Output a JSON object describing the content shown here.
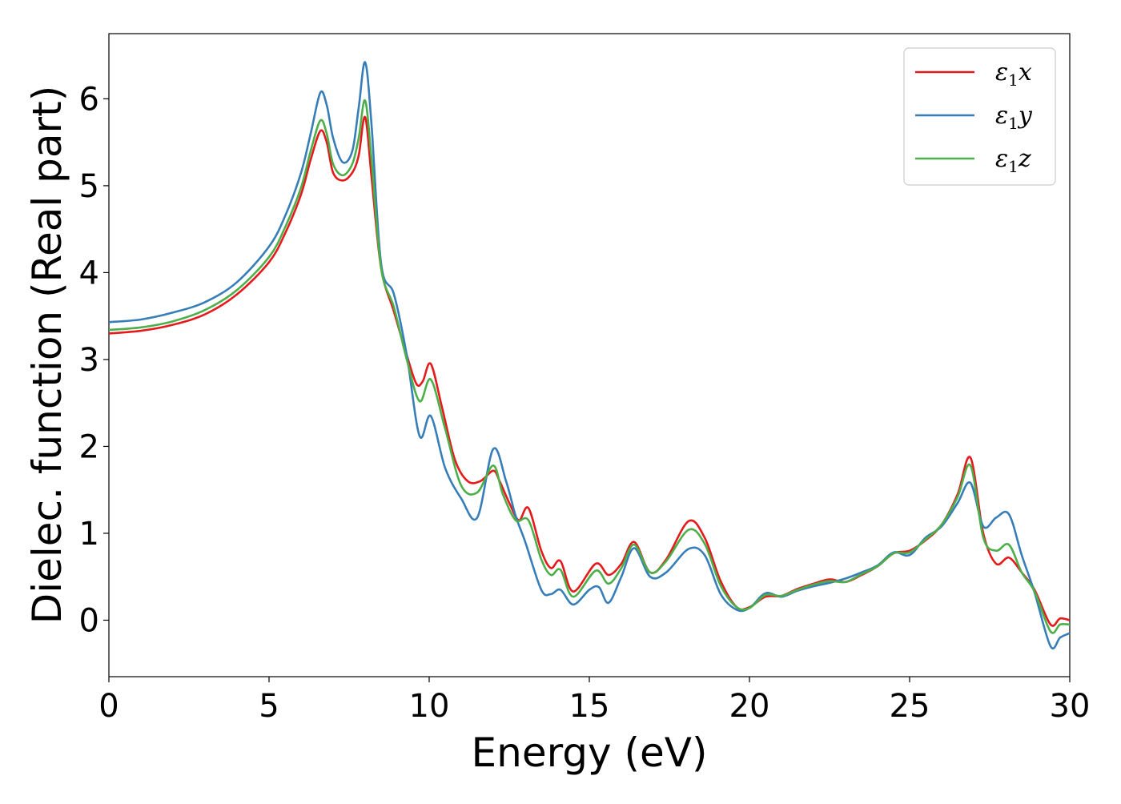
{
  "chart_data": {
    "type": "line",
    "title": "",
    "xlabel": "Energy (eV)",
    "ylabel": "Dielec. function (Real part)",
    "xlim": [
      0,
      30
    ],
    "ylim": [
      -0.65,
      6.75
    ],
    "xticks": [
      0,
      5,
      10,
      15,
      20,
      25,
      30
    ],
    "yticks": [
      0,
      1,
      2,
      3,
      4,
      5,
      6
    ],
    "grid": false,
    "legend_position": "top-right",
    "series": [
      {
        "name": "ε1x",
        "legend": {
          "symbol": "ε",
          "sub": "1",
          "axis": "x"
        },
        "color": "#e41a1c",
        "points": [
          [
            0,
            3.3
          ],
          [
            1,
            3.33
          ],
          [
            2,
            3.4
          ],
          [
            3,
            3.52
          ],
          [
            4,
            3.75
          ],
          [
            5,
            4.12
          ],
          [
            5.5,
            4.45
          ],
          [
            6,
            4.9
          ],
          [
            6.3,
            5.3
          ],
          [
            6.6,
            5.63
          ],
          [
            6.8,
            5.5
          ],
          [
            7.0,
            5.15
          ],
          [
            7.3,
            5.06
          ],
          [
            7.6,
            5.15
          ],
          [
            7.8,
            5.35
          ],
          [
            8.0,
            5.79
          ],
          [
            8.2,
            5.1
          ],
          [
            8.5,
            4.05
          ],
          [
            8.9,
            3.55
          ],
          [
            9.3,
            3.05
          ],
          [
            9.6,
            2.72
          ],
          [
            9.8,
            2.75
          ],
          [
            10.05,
            2.95
          ],
          [
            10.4,
            2.45
          ],
          [
            10.8,
            1.85
          ],
          [
            11.2,
            1.6
          ],
          [
            11.6,
            1.6
          ],
          [
            12.0,
            1.72
          ],
          [
            12.2,
            1.6
          ],
          [
            12.5,
            1.35
          ],
          [
            12.8,
            1.15
          ],
          [
            13.1,
            1.29
          ],
          [
            13.5,
            0.8
          ],
          [
            13.8,
            0.6
          ],
          [
            14.1,
            0.68
          ],
          [
            14.5,
            0.33
          ],
          [
            15.2,
            0.65
          ],
          [
            15.6,
            0.52
          ],
          [
            16.0,
            0.65
          ],
          [
            16.4,
            0.9
          ],
          [
            16.9,
            0.55
          ],
          [
            17.4,
            0.7
          ],
          [
            18.1,
            1.14
          ],
          [
            18.6,
            0.95
          ],
          [
            19.1,
            0.45
          ],
          [
            19.6,
            0.15
          ],
          [
            20.0,
            0.15
          ],
          [
            20.5,
            0.27
          ],
          [
            21.0,
            0.28
          ],
          [
            21.5,
            0.36
          ],
          [
            22.0,
            0.42
          ],
          [
            22.5,
            0.47
          ],
          [
            23.0,
            0.44
          ],
          [
            23.5,
            0.52
          ],
          [
            24.0,
            0.62
          ],
          [
            24.5,
            0.77
          ],
          [
            25.0,
            0.8
          ],
          [
            25.5,
            0.92
          ],
          [
            26.0,
            1.1
          ],
          [
            26.5,
            1.45
          ],
          [
            26.9,
            1.87
          ],
          [
            27.3,
            1.0
          ],
          [
            27.7,
            0.65
          ],
          [
            28.1,
            0.72
          ],
          [
            28.5,
            0.55
          ],
          [
            28.9,
            0.35
          ],
          [
            29.4,
            -0.05
          ],
          [
            29.7,
            0.02
          ],
          [
            30.0,
            0.0
          ]
        ]
      },
      {
        "name": "ε1y",
        "legend": {
          "symbol": "ε",
          "sub": "1",
          "axis": "y"
        },
        "color": "#377eb8",
        "points": [
          [
            0,
            3.43
          ],
          [
            1,
            3.46
          ],
          [
            2,
            3.54
          ],
          [
            3,
            3.66
          ],
          [
            4,
            3.89
          ],
          [
            5,
            4.3
          ],
          [
            5.5,
            4.65
          ],
          [
            6,
            5.15
          ],
          [
            6.3,
            5.6
          ],
          [
            6.6,
            6.07
          ],
          [
            6.8,
            5.93
          ],
          [
            7.0,
            5.55
          ],
          [
            7.3,
            5.27
          ],
          [
            7.6,
            5.4
          ],
          [
            7.8,
            5.9
          ],
          [
            8.0,
            6.42
          ],
          [
            8.2,
            5.7
          ],
          [
            8.5,
            4.1
          ],
          [
            8.9,
            3.75
          ],
          [
            9.3,
            3.05
          ],
          [
            9.7,
            2.12
          ],
          [
            10.05,
            2.35
          ],
          [
            10.5,
            1.75
          ],
          [
            11.0,
            1.4
          ],
          [
            11.5,
            1.18
          ],
          [
            12.0,
            1.97
          ],
          [
            12.4,
            1.6
          ],
          [
            12.7,
            1.2
          ],
          [
            13.0,
            0.9
          ],
          [
            13.5,
            0.35
          ],
          [
            13.8,
            0.3
          ],
          [
            14.1,
            0.35
          ],
          [
            14.5,
            0.18
          ],
          [
            15.0,
            0.35
          ],
          [
            15.3,
            0.38
          ],
          [
            15.6,
            0.2
          ],
          [
            16.0,
            0.5
          ],
          [
            16.4,
            0.83
          ],
          [
            16.9,
            0.5
          ],
          [
            17.4,
            0.55
          ],
          [
            18.1,
            0.82
          ],
          [
            18.6,
            0.75
          ],
          [
            19.1,
            0.3
          ],
          [
            19.6,
            0.12
          ],
          [
            20.0,
            0.14
          ],
          [
            20.5,
            0.31
          ],
          [
            21.0,
            0.27
          ],
          [
            21.5,
            0.34
          ],
          [
            22.0,
            0.39
          ],
          [
            22.5,
            0.43
          ],
          [
            23.0,
            0.48
          ],
          [
            23.5,
            0.55
          ],
          [
            24.0,
            0.63
          ],
          [
            24.5,
            0.78
          ],
          [
            25.0,
            0.75
          ],
          [
            25.5,
            0.95
          ],
          [
            26.0,
            1.08
          ],
          [
            26.5,
            1.35
          ],
          [
            26.9,
            1.58
          ],
          [
            27.3,
            1.08
          ],
          [
            27.7,
            1.18
          ],
          [
            28.1,
            1.22
          ],
          [
            28.5,
            0.75
          ],
          [
            28.9,
            0.32
          ],
          [
            29.4,
            -0.3
          ],
          [
            29.7,
            -0.2
          ],
          [
            30.0,
            -0.15
          ]
        ]
      },
      {
        "name": "ε1z",
        "legend": {
          "symbol": "ε",
          "sub": "1",
          "axis": "z"
        },
        "color": "#4daf4a",
        "points": [
          [
            0,
            3.34
          ],
          [
            1,
            3.37
          ],
          [
            2,
            3.44
          ],
          [
            3,
            3.57
          ],
          [
            4,
            3.8
          ],
          [
            5,
            4.18
          ],
          [
            5.5,
            4.52
          ],
          [
            6,
            4.98
          ],
          [
            6.3,
            5.4
          ],
          [
            6.6,
            5.75
          ],
          [
            6.8,
            5.6
          ],
          [
            7.0,
            5.25
          ],
          [
            7.3,
            5.12
          ],
          [
            7.6,
            5.25
          ],
          [
            7.8,
            5.55
          ],
          [
            8.0,
            5.98
          ],
          [
            8.2,
            5.3
          ],
          [
            8.5,
            4.05
          ],
          [
            8.9,
            3.6
          ],
          [
            9.3,
            3.0
          ],
          [
            9.7,
            2.52
          ],
          [
            10.05,
            2.77
          ],
          [
            10.5,
            2.2
          ],
          [
            11.0,
            1.55
          ],
          [
            11.5,
            1.47
          ],
          [
            12.0,
            1.78
          ],
          [
            12.3,
            1.45
          ],
          [
            12.7,
            1.15
          ],
          [
            13.1,
            1.15
          ],
          [
            13.5,
            0.7
          ],
          [
            13.8,
            0.52
          ],
          [
            14.1,
            0.58
          ],
          [
            14.5,
            0.27
          ],
          [
            15.2,
            0.57
          ],
          [
            15.6,
            0.42
          ],
          [
            16.0,
            0.6
          ],
          [
            16.4,
            0.87
          ],
          [
            16.9,
            0.55
          ],
          [
            17.4,
            0.68
          ],
          [
            18.1,
            1.04
          ],
          [
            18.6,
            0.88
          ],
          [
            19.1,
            0.4
          ],
          [
            19.6,
            0.15
          ],
          [
            20.0,
            0.14
          ],
          [
            20.5,
            0.29
          ],
          [
            21.0,
            0.28
          ],
          [
            21.5,
            0.35
          ],
          [
            22.0,
            0.41
          ],
          [
            22.5,
            0.45
          ],
          [
            23.0,
            0.44
          ],
          [
            23.5,
            0.53
          ],
          [
            24.0,
            0.62
          ],
          [
            24.5,
            0.77
          ],
          [
            25.0,
            0.78
          ],
          [
            25.5,
            0.93
          ],
          [
            26.0,
            1.1
          ],
          [
            26.5,
            1.42
          ],
          [
            26.9,
            1.78
          ],
          [
            27.3,
            0.95
          ],
          [
            27.7,
            0.8
          ],
          [
            28.1,
            0.87
          ],
          [
            28.5,
            0.55
          ],
          [
            28.9,
            0.33
          ],
          [
            29.4,
            -0.13
          ],
          [
            29.7,
            -0.05
          ],
          [
            30.0,
            -0.05
          ]
        ]
      }
    ]
  }
}
